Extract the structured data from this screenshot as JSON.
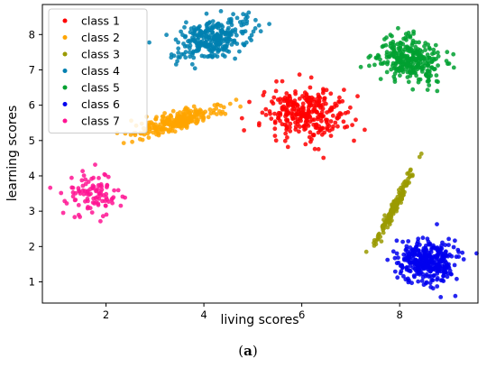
{
  "caption": {
    "open": "(",
    "letter": "a",
    "close": ")"
  },
  "chart_data": {
    "type": "scatter",
    "xlabel": "living scores",
    "ylabel": "learning scores",
    "xlim": [
      0.7,
      9.6
    ],
    "ylim": [
      0.4,
      8.85
    ],
    "xticks": [
      "2",
      "4",
      "6",
      "8"
    ],
    "yticks": [
      "1",
      "2",
      "3",
      "4",
      "5",
      "6",
      "7",
      "8"
    ],
    "grid": false,
    "legend_position": "top-left",
    "series": [
      {
        "name": "class 1",
        "color": "#ff0000",
        "n": 300,
        "center": [
          6.05,
          5.78
        ],
        "spread": [
          0.42,
          0.35
        ],
        "corr": 0.0
      },
      {
        "name": "class 2",
        "color": "#ffa500",
        "n": 250,
        "center": [
          3.5,
          5.55
        ],
        "spread": [
          0.42,
          0.2
        ],
        "corr": 0.8
      },
      {
        "name": "class 3",
        "color": "#9a9a00",
        "n": 150,
        "center": [
          7.9,
          3.15
        ],
        "spread": [
          0.22,
          0.6
        ],
        "corr": 0.98
      },
      {
        "name": "class 4",
        "color": "#0080b0",
        "n": 300,
        "center": [
          4.2,
          7.9
        ],
        "spread": [
          0.38,
          0.3
        ],
        "corr": 0.35
      },
      {
        "name": "class 5",
        "color": "#00a030",
        "n": 300,
        "center": [
          8.2,
          7.3
        ],
        "spread": [
          0.3,
          0.32
        ],
        "corr": -0.25
      },
      {
        "name": "class 6",
        "color": "#0000ee",
        "n": 350,
        "center": [
          8.55,
          1.6
        ],
        "spread": [
          0.3,
          0.3
        ],
        "corr": 0.0
      },
      {
        "name": "class 7",
        "color": "#ff1493",
        "n": 100,
        "center": [
          1.7,
          3.5
        ],
        "spread": [
          0.3,
          0.32
        ],
        "corr": 0.0
      }
    ]
  }
}
